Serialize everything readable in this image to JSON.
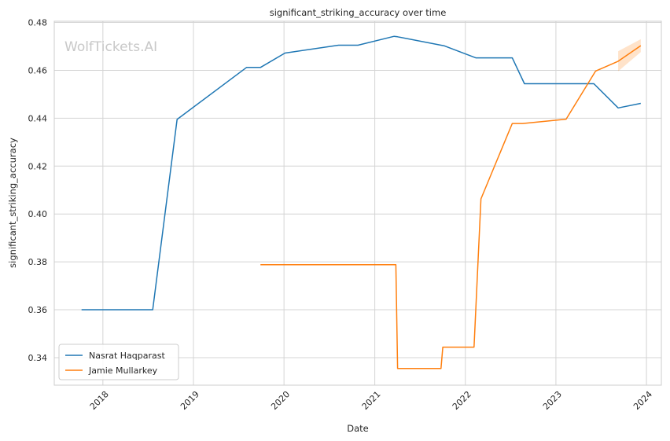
{
  "chart_data": {
    "type": "line",
    "title": "significant_striking_accuracy over time",
    "xlabel": "Date",
    "ylabel": "significant_striking_accuracy",
    "watermark": "WolfTickets.AI",
    "x_ticks": [
      "2018",
      "2019",
      "2020",
      "2021",
      "2022",
      "2023",
      "2024"
    ],
    "y_ticks": [
      "0.34",
      "0.36",
      "0.38",
      "0.40",
      "0.42",
      "0.44",
      "0.46",
      "0.48"
    ],
    "xlim": [
      "2017-06-19",
      "2024-03-01"
    ],
    "ylim": [
      0.3285,
      0.4805
    ],
    "grid": true,
    "legend_position": "lower-left",
    "series": [
      {
        "name": "Nasrat Haqparast",
        "color": "#1f77b4",
        "points": [
          [
            "2017-10-07",
            0.36
          ],
          [
            "2018-07-21",
            0.36
          ],
          [
            "2018-10-27",
            0.4395
          ],
          [
            "2019-08-03",
            0.4612
          ],
          [
            "2019-09-28",
            0.4612
          ],
          [
            "2020-01-05",
            0.4672
          ],
          [
            "2020-08-08",
            0.4705
          ],
          [
            "2020-10-25",
            0.4705
          ],
          [
            "2021-03-20",
            0.4742
          ],
          [
            "2021-04-03",
            0.474
          ],
          [
            "2021-10-09",
            0.4702
          ],
          [
            "2022-02-12",
            0.4652
          ],
          [
            "2022-07-09",
            0.4652
          ],
          [
            "2022-08-27",
            0.4544
          ],
          [
            "2023-06-03",
            0.4544
          ],
          [
            "2023-09-09",
            0.4443
          ],
          [
            "2023-12-09",
            0.4462
          ]
        ]
      },
      {
        "name": "Jamie Mullarkey",
        "color": "#ff7f0e",
        "points": [
          [
            "2019-09-28",
            0.3788
          ],
          [
            "2021-03-27",
            0.3788
          ],
          [
            "2021-04-03",
            0.3355
          ],
          [
            "2021-09-25",
            0.3355
          ],
          [
            "2021-10-02",
            0.3444
          ],
          [
            "2022-02-05",
            0.3444
          ],
          [
            "2022-03-05",
            0.4063
          ],
          [
            "2022-07-09",
            0.4378
          ],
          [
            "2022-08-20",
            0.4378
          ],
          [
            "2023-02-11",
            0.4396
          ],
          [
            "2023-06-10",
            0.4597
          ],
          [
            "2023-09-09",
            0.4638
          ],
          [
            "2023-12-09",
            0.4703
          ]
        ],
        "band": [
          [
            "2023-09-09",
            0.4596,
            0.468
          ],
          [
            "2023-12-09",
            0.4676,
            0.473
          ]
        ]
      }
    ]
  }
}
